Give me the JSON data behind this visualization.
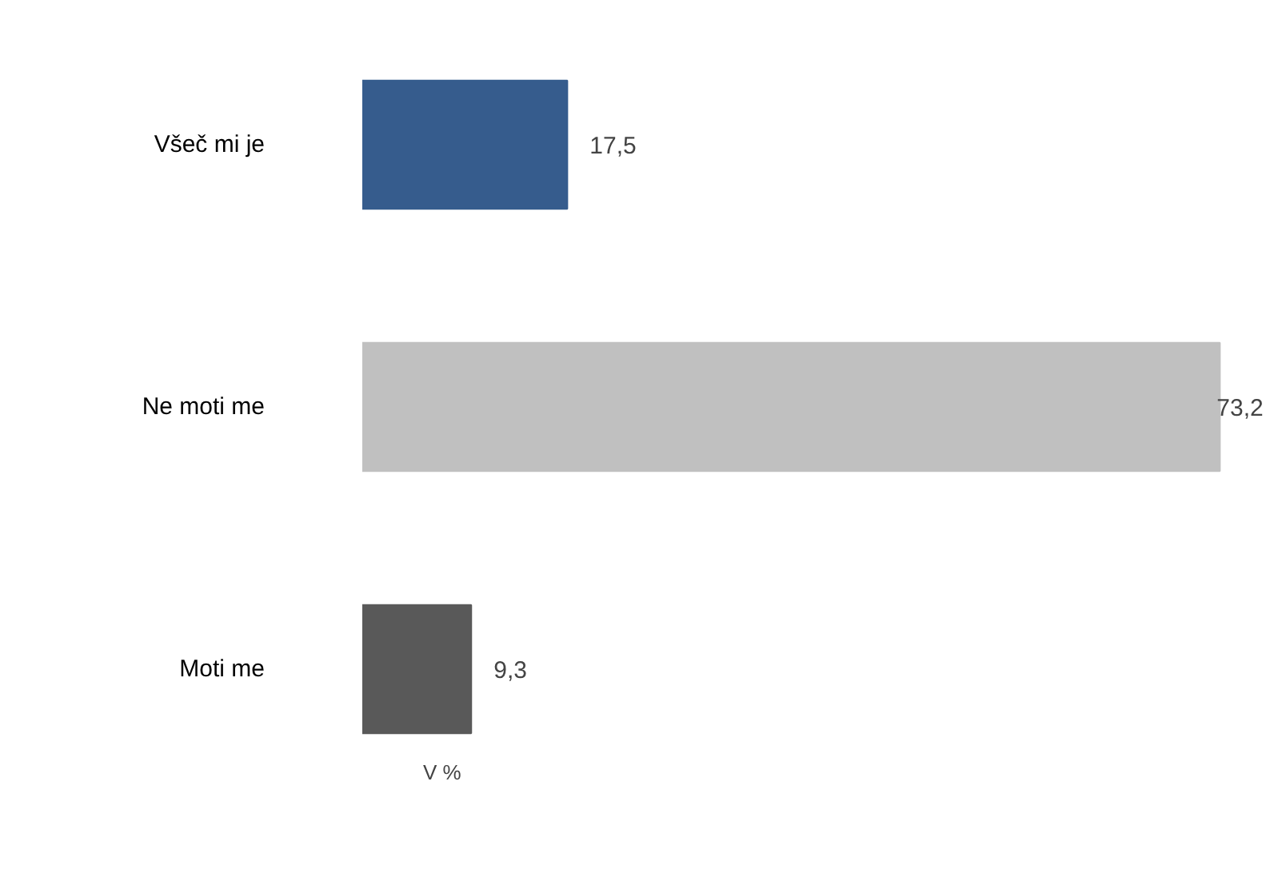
{
  "chart_data": {
    "type": "bar",
    "orientation": "horizontal",
    "categories": [
      "Všeč mi je",
      "Ne moti me",
      "Moti me"
    ],
    "values": [
      17.5,
      73.2,
      9.3
    ],
    "colors": [
      "#365c8d",
      "#c0c0c0",
      "#595959"
    ],
    "value_labels": [
      "17,5",
      "73,2",
      "9,3"
    ],
    "annotations": [
      "V %"
    ],
    "tick_labels": "y",
    "grid": false
  }
}
